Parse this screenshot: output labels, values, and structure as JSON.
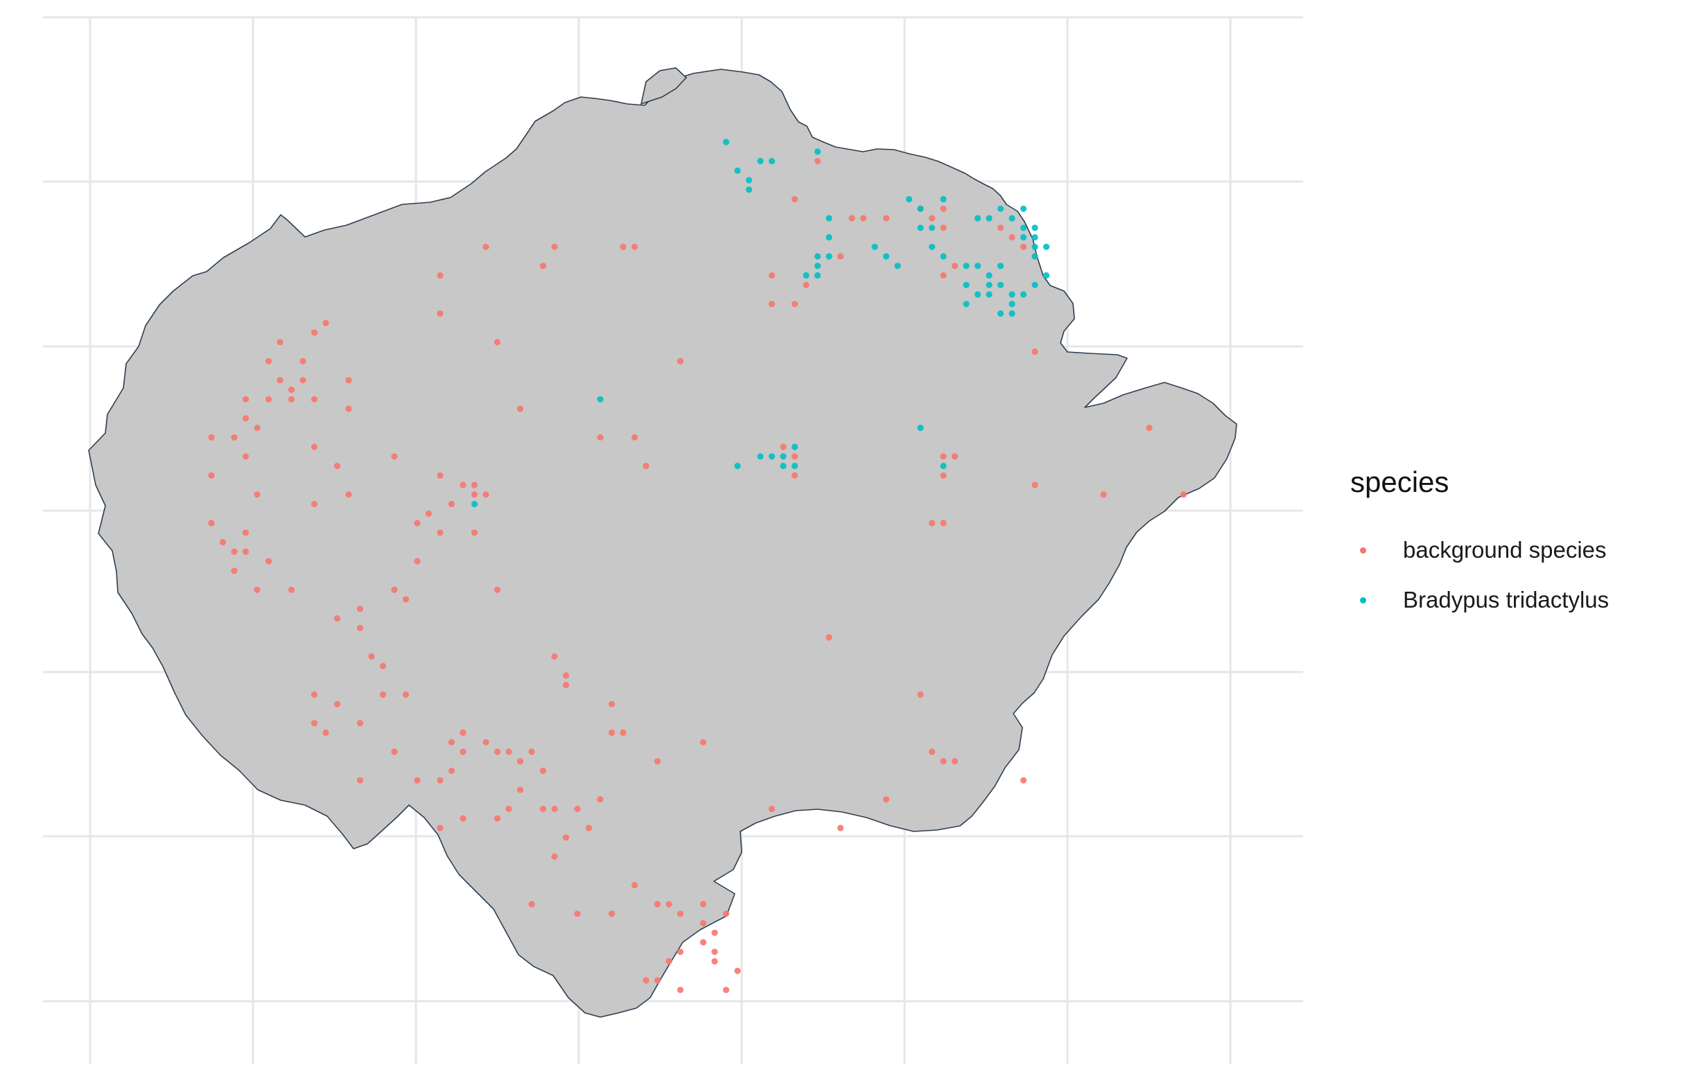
{
  "chart_data": {
    "type": "scatter",
    "title": "",
    "xlabel": "",
    "ylabel": "",
    "grid": true,
    "legend": {
      "title": "species",
      "placement": "right"
    },
    "colors": {
      "background_species": "#F8766D",
      "bradypus": "#00BFC4",
      "land": "#C8C8C8",
      "border": "#2C3E50",
      "grid": "#E6E6E6"
    },
    "xlim": [
      0,
      1
    ],
    "ylim": [
      0,
      1
    ],
    "series": [
      {
        "name": "background species",
        "color": "#F8766D",
        "points": [
          [
            0.3,
            0.22
          ],
          [
            0.3,
            0.26
          ],
          [
            0.16,
            0.29
          ],
          [
            0.19,
            0.28
          ],
          [
            0.2,
            0.27
          ],
          [
            0.18,
            0.31
          ],
          [
            0.15,
            0.31
          ],
          [
            0.16,
            0.33
          ],
          [
            0.17,
            0.34
          ],
          [
            0.18,
            0.33
          ],
          [
            0.19,
            0.35
          ],
          [
            0.17,
            0.35
          ],
          [
            0.15,
            0.35
          ],
          [
            0.13,
            0.35
          ],
          [
            0.13,
            0.37
          ],
          [
            0.14,
            0.38
          ],
          [
            0.12,
            0.39
          ],
          [
            0.13,
            0.41
          ],
          [
            0.1,
            0.39
          ],
          [
            0.1,
            0.43
          ],
          [
            0.22,
            0.33
          ],
          [
            0.22,
            0.36
          ],
          [
            0.19,
            0.4
          ],
          [
            0.21,
            0.42
          ],
          [
            0.22,
            0.45
          ],
          [
            0.19,
            0.46
          ],
          [
            0.14,
            0.45
          ],
          [
            0.13,
            0.49
          ],
          [
            0.1,
            0.48
          ],
          [
            0.11,
            0.5
          ],
          [
            0.12,
            0.51
          ],
          [
            0.13,
            0.51
          ],
          [
            0.12,
            0.53
          ],
          [
            0.15,
            0.52
          ],
          [
            0.14,
            0.55
          ],
          [
            0.17,
            0.55
          ],
          [
            0.21,
            0.58
          ],
          [
            0.23,
            0.57
          ],
          [
            0.26,
            0.55
          ],
          [
            0.27,
            0.56
          ],
          [
            0.28,
            0.52
          ],
          [
            0.28,
            0.48
          ],
          [
            0.29,
            0.47
          ],
          [
            0.3,
            0.49
          ],
          [
            0.31,
            0.46
          ],
          [
            0.3,
            0.43
          ],
          [
            0.32,
            0.44
          ],
          [
            0.33,
            0.45
          ],
          [
            0.33,
            0.49
          ],
          [
            0.35,
            0.55
          ],
          [
            0.26,
            0.41
          ],
          [
            0.23,
            0.59
          ],
          [
            0.24,
            0.62
          ],
          [
            0.25,
            0.63
          ],
          [
            0.25,
            0.66
          ],
          [
            0.27,
            0.66
          ],
          [
            0.21,
            0.67
          ],
          [
            0.23,
            0.69
          ],
          [
            0.19,
            0.66
          ],
          [
            0.19,
            0.69
          ],
          [
            0.2,
            0.7
          ],
          [
            0.26,
            0.72
          ],
          [
            0.23,
            0.75
          ],
          [
            0.28,
            0.75
          ],
          [
            0.3,
            0.75
          ],
          [
            0.31,
            0.74
          ],
          [
            0.32,
            0.72
          ],
          [
            0.31,
            0.71
          ],
          [
            0.32,
            0.7
          ],
          [
            0.34,
            0.71
          ],
          [
            0.35,
            0.72
          ],
          [
            0.36,
            0.72
          ],
          [
            0.37,
            0.73
          ],
          [
            0.38,
            0.72
          ],
          [
            0.39,
            0.74
          ],
          [
            0.37,
            0.76
          ],
          [
            0.36,
            0.78
          ],
          [
            0.39,
            0.78
          ],
          [
            0.4,
            0.78
          ],
          [
            0.42,
            0.78
          ],
          [
            0.43,
            0.8
          ],
          [
            0.44,
            0.77
          ],
          [
            0.45,
            0.7
          ],
          [
            0.41,
            0.64
          ],
          [
            0.45,
            0.67
          ],
          [
            0.46,
            0.7
          ],
          [
            0.3,
            0.8
          ],
          [
            0.32,
            0.79
          ],
          [
            0.35,
            0.79
          ],
          [
            0.4,
            0.83
          ],
          [
            0.41,
            0.81
          ],
          [
            0.38,
            0.88
          ],
          [
            0.42,
            0.89
          ],
          [
            0.45,
            0.89
          ],
          [
            0.47,
            0.86
          ],
          [
            0.49,
            0.88
          ],
          [
            0.5,
            0.88
          ],
          [
            0.51,
            0.89
          ],
          [
            0.53,
            0.88
          ],
          [
            0.53,
            0.9
          ],
          [
            0.53,
            0.92
          ],
          [
            0.54,
            0.91
          ],
          [
            0.55,
            0.89
          ],
          [
            0.51,
            0.93
          ],
          [
            0.5,
            0.94
          ],
          [
            0.54,
            0.93
          ],
          [
            0.56,
            0.95
          ],
          [
            0.48,
            0.96
          ],
          [
            0.49,
            0.96
          ],
          [
            0.51,
            0.97
          ],
          [
            0.54,
            0.94
          ],
          [
            0.55,
            0.97
          ],
          [
            0.41,
            0.65
          ],
          [
            0.4,
            0.62
          ],
          [
            0.49,
            0.73
          ],
          [
            0.59,
            0.78
          ],
          [
            0.65,
            0.8
          ],
          [
            0.69,
            0.77
          ],
          [
            0.73,
            0.72
          ],
          [
            0.74,
            0.73
          ],
          [
            0.75,
            0.73
          ],
          [
            0.72,
            0.66
          ],
          [
            0.64,
            0.6
          ],
          [
            0.53,
            0.71
          ],
          [
            0.44,
            0.39
          ],
          [
            0.51,
            0.31
          ],
          [
            0.33,
            0.44
          ],
          [
            0.34,
            0.45
          ],
          [
            0.47,
            0.39
          ],
          [
            0.48,
            0.42
          ],
          [
            0.37,
            0.36
          ],
          [
            0.35,
            0.29
          ],
          [
            0.34,
            0.19
          ],
          [
            0.39,
            0.21
          ],
          [
            0.4,
            0.19
          ],
          [
            0.46,
            0.19
          ],
          [
            0.47,
            0.19
          ],
          [
            0.59,
            0.22
          ],
          [
            0.59,
            0.25
          ],
          [
            0.61,
            0.25
          ],
          [
            0.62,
            0.23
          ],
          [
            0.65,
            0.2
          ],
          [
            0.61,
            0.14
          ],
          [
            0.63,
            0.1
          ],
          [
            0.66,
            0.16
          ],
          [
            0.67,
            0.16
          ],
          [
            0.69,
            0.16
          ],
          [
            0.72,
            0.15
          ],
          [
            0.73,
            0.16
          ],
          [
            0.74,
            0.15
          ],
          [
            0.74,
            0.17
          ],
          [
            0.74,
            0.22
          ],
          [
            0.75,
            0.21
          ],
          [
            0.79,
            0.17
          ],
          [
            0.8,
            0.18
          ],
          [
            0.81,
            0.19
          ],
          [
            0.82,
            0.2
          ],
          [
            0.82,
            0.3
          ],
          [
            0.6,
            0.4
          ],
          [
            0.61,
            0.41
          ],
          [
            0.61,
            0.43
          ],
          [
            0.74,
            0.41
          ],
          [
            0.75,
            0.41
          ],
          [
            0.74,
            0.43
          ],
          [
            0.73,
            0.48
          ],
          [
            0.74,
            0.48
          ],
          [
            0.82,
            0.44
          ],
          [
            0.88,
            0.45
          ],
          [
            0.95,
            0.45
          ],
          [
            0.92,
            0.38
          ],
          [
            0.81,
            0.75
          ]
        ]
      },
      {
        "name": "Bradypus tridactylus",
        "color": "#00BFC4",
        "points": [
          [
            0.55,
            0.08
          ],
          [
            0.56,
            0.11
          ],
          [
            0.57,
            0.13
          ],
          [
            0.58,
            0.1
          ],
          [
            0.59,
            0.1
          ],
          [
            0.63,
            0.09
          ],
          [
            0.57,
            0.12
          ],
          [
            0.64,
            0.16
          ],
          [
            0.64,
            0.18
          ],
          [
            0.63,
            0.2
          ],
          [
            0.64,
            0.2
          ],
          [
            0.63,
            0.21
          ],
          [
            0.63,
            0.22
          ],
          [
            0.62,
            0.22
          ],
          [
            0.68,
            0.19
          ],
          [
            0.69,
            0.2
          ],
          [
            0.7,
            0.21
          ],
          [
            0.71,
            0.14
          ],
          [
            0.72,
            0.15
          ],
          [
            0.73,
            0.17
          ],
          [
            0.73,
            0.19
          ],
          [
            0.74,
            0.2
          ],
          [
            0.72,
            0.17
          ],
          [
            0.76,
            0.21
          ],
          [
            0.76,
            0.23
          ],
          [
            0.77,
            0.21
          ],
          [
            0.77,
            0.24
          ],
          [
            0.78,
            0.22
          ],
          [
            0.78,
            0.24
          ],
          [
            0.79,
            0.21
          ],
          [
            0.79,
            0.23
          ],
          [
            0.8,
            0.24
          ],
          [
            0.8,
            0.25
          ],
          [
            0.81,
            0.17
          ],
          [
            0.81,
            0.18
          ],
          [
            0.82,
            0.19
          ],
          [
            0.82,
            0.2
          ],
          [
            0.83,
            0.19
          ],
          [
            0.83,
            0.22
          ],
          [
            0.82,
            0.23
          ],
          [
            0.81,
            0.24
          ],
          [
            0.8,
            0.26
          ],
          [
            0.79,
            0.26
          ],
          [
            0.76,
            0.25
          ],
          [
            0.77,
            0.16
          ],
          [
            0.78,
            0.16
          ],
          [
            0.79,
            0.15
          ],
          [
            0.8,
            0.16
          ],
          [
            0.81,
            0.15
          ],
          [
            0.74,
            0.14
          ],
          [
            0.78,
            0.23
          ],
          [
            0.82,
            0.17
          ],
          [
            0.58,
            0.41
          ],
          [
            0.59,
            0.41
          ],
          [
            0.6,
            0.41
          ],
          [
            0.61,
            0.4
          ],
          [
            0.61,
            0.42
          ],
          [
            0.6,
            0.42
          ],
          [
            0.56,
            0.42
          ],
          [
            0.44,
            0.35
          ],
          [
            0.72,
            0.38
          ],
          [
            0.74,
            0.42
          ],
          [
            0.33,
            0.46
          ],
          [
            0.82,
            0.18
          ]
        ]
      }
    ]
  }
}
